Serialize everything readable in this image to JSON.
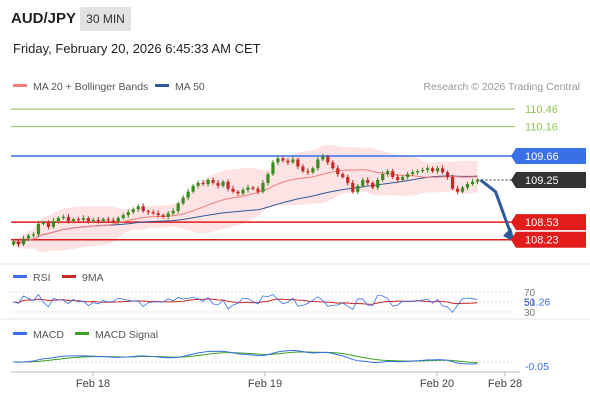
{
  "header": {
    "symbol": "AUD/JPY",
    "interval": "30 MIN",
    "datetime": "Friday, February 20, 2026 6:45:33 AM CET"
  },
  "legend": {
    "ma20": "MA 20 + Bollinger Bands",
    "ma50": "MA 50",
    "copyright": "Research © 2026 Trading Central",
    "rsi": "RSI",
    "rsi_ma": "9MA",
    "macd": "MACD",
    "macd_signal": "MACD Signal"
  },
  "colors": {
    "ma20": "#f47c7c",
    "bollinger_fill": "#fde3e3",
    "ma50": "#2e5a9b",
    "resistance_green": "#8fc35a",
    "pivot_blue": "#3a6fe8",
    "support_red": "#e21b1b",
    "bull_candle": "#3a8a1f",
    "bear_candle": "#c62828",
    "forecast_arrow": "#2e5a9b",
    "price_tag": "#333333",
    "rsi_line": "#3a6fe8",
    "rsi_ma_line": "#c62828",
    "macd_line": "#3a6fe8",
    "signal_line": "#3aa021"
  },
  "chart_data": {
    "type": "candlestick",
    "x_ticks": [
      "Feb 18",
      "Feb 19",
      "Feb 20",
      "Feb 28"
    ],
    "y_range": [
      107.85,
      110.7
    ],
    "levels": [
      {
        "label": "110.46",
        "value": 110.46,
        "kind": "resistance"
      },
      {
        "label": "110.16",
        "value": 110.16,
        "kind": "resistance"
      },
      {
        "label": "109.66",
        "value": 109.66,
        "kind": "pivot"
      },
      {
        "label": "109.25",
        "value": 109.25,
        "kind": "last"
      },
      {
        "label": "108.53",
        "value": 108.53,
        "kind": "support"
      },
      {
        "label": "108.23",
        "value": 108.23,
        "kind": "support"
      }
    ],
    "closes": [
      108.2,
      108.15,
      108.25,
      108.3,
      108.32,
      108.5,
      108.52,
      108.45,
      108.55,
      108.6,
      108.62,
      108.55,
      108.58,
      108.57,
      108.6,
      108.55,
      108.57,
      108.55,
      108.58,
      108.56,
      108.54,
      108.6,
      108.65,
      108.7,
      108.75,
      108.8,
      108.72,
      108.7,
      108.68,
      108.65,
      108.62,
      108.68,
      108.72,
      108.85,
      108.95,
      109.05,
      109.15,
      109.2,
      109.18,
      109.25,
      109.2,
      109.15,
      109.22,
      109.1,
      109.05,
      109.02,
      109.08,
      109.12,
      109.1,
      109.05,
      109.2,
      109.35,
      109.55,
      109.62,
      109.58,
      109.55,
      109.6,
      109.48,
      109.4,
      109.38,
      109.45,
      109.6,
      109.65,
      109.55,
      109.45,
      109.35,
      109.3,
      109.2,
      109.05,
      109.15,
      109.25,
      109.2,
      109.12,
      109.25,
      109.35,
      109.4,
      109.3,
      109.25,
      109.3,
      109.35,
      109.38,
      109.4,
      109.42,
      109.45,
      109.4,
      109.45,
      109.38,
      109.3,
      109.1,
      109.05,
      109.12,
      109.18,
      109.22,
      109.25
    ],
    "forecast": [
      109.25,
      109.05,
      108.23
    ],
    "rsi": {
      "ticks": [
        "70",
        "50",
        "30"
      ],
      "last_label": "51.26",
      "range": [
        30,
        70
      ]
    },
    "macd": {
      "last_label": "-0.05"
    }
  }
}
